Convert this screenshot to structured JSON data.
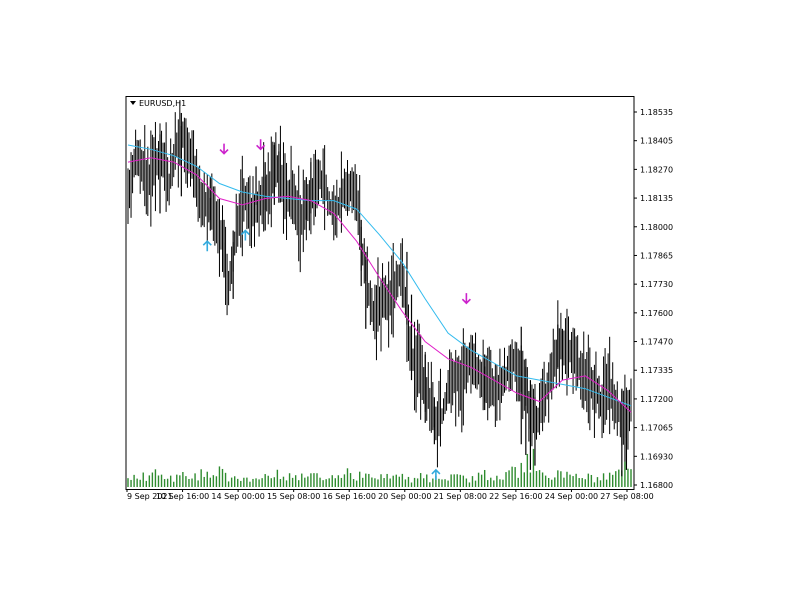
{
  "chart_data": {
    "type": "candlestick",
    "symbol_label": "EURUSD,H1",
    "y_ticks": [
      "1.18535",
      "1.18405",
      "1.18270",
      "1.18135",
      "1.18000",
      "1.17865",
      "1.17730",
      "1.17600",
      "1.17470",
      "1.17335",
      "1.17200",
      "1.17065",
      "1.16930",
      "1.16800"
    ],
    "x_ticks": [
      "9 Sep 2021",
      "10 Sep 16:00",
      "14 Sep 00:00",
      "15 Sep 08:00",
      "16 Sep 16:00",
      "20 Sep 00:00",
      "21 Sep 08:00",
      "22 Sep 16:00",
      "24 Sep 00:00",
      "27 Sep 08:00"
    ],
    "ylim": [
      1.168,
      1.1862
    ],
    "bar_color": "#000000",
    "volume_color": "#2e8b2e",
    "ma_fast_color": "#e020c8",
    "ma_slow_color": "#33bbee",
    "arrow_down_color": "#cc22cc",
    "arrow_up_color": "#33aadd",
    "close_points": [
      [
        0,
        1.1815
      ],
      [
        3,
        1.1828
      ],
      [
        6,
        1.1836
      ],
      [
        9,
        1.183
      ],
      [
        12,
        1.1822
      ],
      [
        15,
        1.1826
      ],
      [
        18,
        1.1833
      ],
      [
        21,
        1.1836
      ],
      [
        24,
        1.183
      ],
      [
        27,
        1.1822
      ],
      [
        30,
        1.1835
      ],
      [
        33,
        1.184
      ],
      [
        36,
        1.1845
      ],
      [
        39,
        1.1838
      ],
      [
        42,
        1.1832
      ],
      [
        45,
        1.1822
      ],
      [
        48,
        1.1816
      ],
      [
        51,
        1.1812
      ],
      [
        54,
        1.181
      ],
      [
        57,
        1.1806
      ],
      [
        60,
        1.18
      ],
      [
        63,
        1.1785
      ],
      [
        66,
        1.1775
      ],
      [
        69,
        1.1788
      ],
      [
        72,
        1.1805
      ],
      [
        75,
        1.181
      ],
      [
        78,
        1.1815
      ],
      [
        81,
        1.1808
      ],
      [
        84,
        1.1812
      ],
      [
        87,
        1.1815
      ],
      [
        90,
        1.1818
      ],
      [
        93,
        1.1823
      ],
      [
        96,
        1.1828
      ],
      [
        99,
        1.1826
      ],
      [
        102,
        1.182
      ],
      [
        105,
        1.1815
      ],
      [
        108,
        1.1812
      ],
      [
        111,
        1.1808
      ],
      [
        114,
        1.1806
      ],
      [
        117,
        1.181
      ],
      [
        120,
        1.1816
      ],
      [
        123,
        1.1822
      ],
      [
        126,
        1.1826
      ],
      [
        129,
        1.1822
      ],
      [
        132,
        1.1813
      ],
      [
        135,
        1.1808
      ],
      [
        138,
        1.1812
      ],
      [
        141,
        1.1818
      ],
      [
        144,
        1.1822
      ],
      [
        147,
        1.182
      ],
      [
        150,
        1.1814
      ],
      [
        153,
        1.1795
      ],
      [
        156,
        1.178
      ],
      [
        159,
        1.1766
      ],
      [
        162,
        1.176
      ],
      [
        165,
        1.1765
      ],
      [
        168,
        1.177
      ],
      [
        171,
        1.1765
      ],
      [
        174,
        1.1772
      ],
      [
        177,
        1.1778
      ],
      [
        180,
        1.1784
      ],
      [
        183,
        1.176
      ],
      [
        186,
        1.1742
      ],
      [
        189,
        1.1735
      ],
      [
        192,
        1.173
      ],
      [
        195,
        1.1728
      ],
      [
        198,
        1.172
      ],
      [
        201,
        1.1712
      ],
      [
        204,
        1.171
      ],
      [
        207,
        1.1715
      ],
      [
        210,
        1.1724
      ],
      [
        213,
        1.173
      ],
      [
        216,
        1.1734
      ],
      [
        219,
        1.173
      ],
      [
        222,
        1.1735
      ],
      [
        225,
        1.174
      ],
      [
        228,
        1.1736
      ],
      [
        231,
        1.1732
      ],
      [
        234,
        1.173
      ],
      [
        237,
        1.1728
      ],
      [
        240,
        1.1725
      ],
      [
        243,
        1.1726
      ],
      [
        246,
        1.173
      ],
      [
        249,
        1.1735
      ],
      [
        252,
        1.1738
      ],
      [
        255,
        1.1736
      ],
      [
        258,
        1.173
      ],
      [
        261,
        1.1725
      ],
      [
        264,
        1.1715
      ],
      [
        267,
        1.1712
      ],
      [
        270,
        1.1715
      ],
      [
        273,
        1.1722
      ],
      [
        276,
        1.1728
      ],
      [
        279,
        1.1738
      ],
      [
        282,
        1.1745
      ],
      [
        285,
        1.1748
      ],
      [
        288,
        1.1746
      ],
      [
        291,
        1.1742
      ],
      [
        294,
        1.1738
      ],
      [
        297,
        1.1735
      ],
      [
        300,
        1.173
      ],
      [
        303,
        1.1728
      ],
      [
        306,
        1.1724
      ],
      [
        309,
        1.1722
      ],
      [
        312,
        1.172
      ],
      [
        315,
        1.1725
      ],
      [
        318,
        1.1722
      ],
      [
        321,
        1.1718
      ],
      [
        324,
        1.171
      ],
      [
        327,
        1.1715
      ],
      [
        330,
        1.172
      ]
    ],
    "n_bars": 331,
    "wide_bars": [
      [
        21,
        1.1845,
        1.1808
      ],
      [
        35,
        1.1855,
        1.1816
      ],
      [
        54,
        1.1825,
        1.18
      ],
      [
        63,
        1.1805,
        1.1778
      ],
      [
        69,
        1.18,
        1.1768
      ],
      [
        84,
        1.183,
        1.1812
      ],
      [
        90,
        1.1832,
        1.18
      ],
      [
        96,
        1.184,
        1.1812
      ],
      [
        99,
        1.1837,
        1.1813
      ],
      [
        117,
        1.1825,
        1.1805
      ],
      [
        120,
        1.1832,
        1.1808
      ],
      [
        153,
        1.1805,
        1.1774
      ],
      [
        156,
        1.179,
        1.1754
      ],
      [
        183,
        1.179,
        1.1756
      ],
      [
        186,
        1.177,
        1.173
      ],
      [
        195,
        1.1742,
        1.171
      ],
      [
        201,
        1.1722,
        1.17
      ],
      [
        234,
        1.1742,
        1.1716
      ],
      [
        258,
        1.1755,
        1.17
      ],
      [
        261,
        1.174,
        1.1695
      ],
      [
        264,
        1.173,
        1.1688
      ],
      [
        267,
        1.1722,
        1.169
      ],
      [
        282,
        1.1756,
        1.1736
      ],
      [
        285,
        1.1754,
        1.173
      ],
      [
        309,
        1.1732,
        1.1712
      ],
      [
        324,
        1.1726,
        1.1685
      ],
      [
        327,
        1.1718,
        1.1688
      ]
    ],
    "ma_fast": [
      [
        0,
        1.1832
      ],
      [
        15,
        1.1834
      ],
      [
        30,
        1.1832
      ],
      [
        45,
        1.1826
      ],
      [
        60,
        1.1815
      ],
      [
        75,
        1.1812
      ],
      [
        90,
        1.1815
      ],
      [
        105,
        1.1816
      ],
      [
        120,
        1.1814
      ],
      [
        135,
        1.1808
      ],
      [
        150,
        1.1795
      ],
      [
        165,
        1.1778
      ],
      [
        180,
        1.1762
      ],
      [
        195,
        1.1748
      ],
      [
        210,
        1.174
      ],
      [
        225,
        1.1736
      ],
      [
        240,
        1.173
      ],
      [
        255,
        1.1724
      ],
      [
        270,
        1.172
      ],
      [
        285,
        1.173
      ],
      [
        300,
        1.1732
      ],
      [
        315,
        1.1725
      ],
      [
        330,
        1.1715
      ]
    ],
    "ma_slow": [
      [
        0,
        1.184
      ],
      [
        15,
        1.1838
      ],
      [
        30,
        1.1835
      ],
      [
        45,
        1.183
      ],
      [
        60,
        1.1822
      ],
      [
        75,
        1.1818
      ],
      [
        90,
        1.1816
      ],
      [
        105,
        1.1815
      ],
      [
        120,
        1.1814
      ],
      [
        135,
        1.1814
      ],
      [
        150,
        1.181
      ],
      [
        165,
        1.1798
      ],
      [
        180,
        1.1785
      ],
      [
        195,
        1.1768
      ],
      [
        210,
        1.1752
      ],
      [
        225,
        1.1744
      ],
      [
        240,
        1.1738
      ],
      [
        255,
        1.1732
      ],
      [
        270,
        1.173
      ],
      [
        285,
        1.1728
      ],
      [
        300,
        1.1726
      ],
      [
        315,
        1.1722
      ],
      [
        330,
        1.1718
      ]
    ],
    "arrows_down": [
      [
        63,
        1.1836
      ],
      [
        87,
        1.1838
      ],
      [
        222,
        1.1766
      ]
    ],
    "arrows_up": [
      [
        52,
        1.1795
      ],
      [
        77,
        1.18
      ],
      [
        202,
        1.1688
      ]
    ],
    "volume_peaks": [
      [
        0,
        12
      ],
      [
        6,
        18
      ],
      [
        12,
        15
      ],
      [
        18,
        22
      ],
      [
        24,
        10
      ],
      [
        30,
        14
      ],
      [
        36,
        16
      ],
      [
        42,
        12
      ],
      [
        48,
        18
      ],
      [
        54,
        15
      ],
      [
        60,
        24
      ],
      [
        66,
        14
      ],
      [
        72,
        12
      ],
      [
        78,
        13
      ],
      [
        84,
        14
      ],
      [
        90,
        13
      ],
      [
        96,
        20
      ],
      [
        102,
        18
      ],
      [
        108,
        12
      ],
      [
        114,
        16
      ],
      [
        120,
        18
      ],
      [
        126,
        15
      ],
      [
        132,
        12
      ],
      [
        138,
        14
      ],
      [
        144,
        20
      ],
      [
        150,
        16
      ],
      [
        156,
        14
      ],
      [
        162,
        13
      ],
      [
        168,
        14
      ],
      [
        174,
        12
      ],
      [
        180,
        16
      ],
      [
        186,
        10
      ],
      [
        192,
        14
      ],
      [
        198,
        12
      ],
      [
        204,
        18
      ],
      [
        210,
        14
      ],
      [
        216,
        16
      ],
      [
        222,
        12
      ],
      [
        228,
        13
      ],
      [
        234,
        18
      ],
      [
        240,
        14
      ],
      [
        246,
        16
      ],
      [
        252,
        22
      ],
      [
        258,
        28
      ],
      [
        262,
        36
      ],
      [
        266,
        40
      ],
      [
        270,
        18
      ],
      [
        276,
        14
      ],
      [
        282,
        20
      ],
      [
        288,
        16
      ],
      [
        294,
        14
      ],
      [
        300,
        16
      ],
      [
        306,
        12
      ],
      [
        312,
        14
      ],
      [
        318,
        16
      ],
      [
        324,
        30
      ],
      [
        327,
        26
      ],
      [
        330,
        18
      ]
    ]
  }
}
